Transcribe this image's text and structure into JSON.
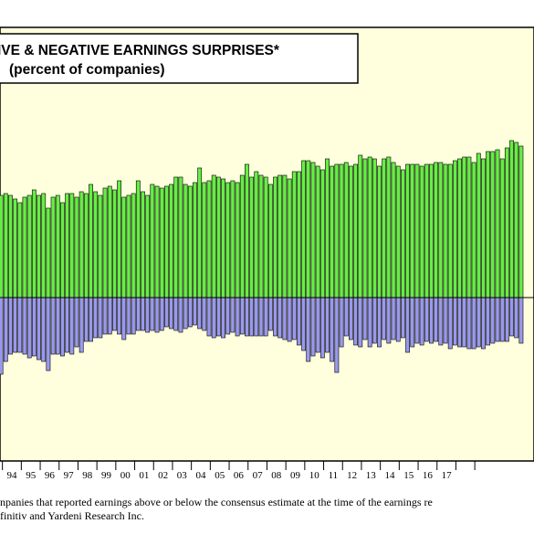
{
  "chart_data": {
    "type": "bar",
    "title": "IVE & NEGATIVE EARNINGS SURPRISES*",
    "subtitle": "(percent of companies)",
    "x_tick_labels": [
      "94",
      "95",
      "96",
      "97",
      "98",
      "99",
      "00",
      "01",
      "02",
      "03",
      "04",
      "05",
      "06",
      "07",
      "08",
      "09",
      "10",
      "11",
      "12",
      "13",
      "14",
      "15",
      "16",
      "17"
    ],
    "ylim": [
      -40,
      100
    ],
    "series": [
      {
        "values": [
          56,
          57,
          56,
          54,
          52,
          55,
          56,
          59,
          56,
          57,
          49,
          55,
          56,
          52,
          57,
          57,
          55,
          58,
          57,
          62,
          58,
          56,
          60,
          61,
          59,
          64,
          55,
          56,
          57,
          64,
          58,
          56,
          62,
          61,
          60,
          61,
          62,
          66,
          66,
          62,
          61,
          63,
          71,
          63,
          64,
          67,
          66,
          65,
          63,
          64,
          63,
          67,
          73,
          66,
          69,
          67,
          66,
          62,
          66,
          67,
          67,
          65,
          69,
          69,
          75,
          75,
          74,
          72,
          70,
          76,
          72,
          73,
          73,
          74,
          72,
          73,
          78,
          76,
          77,
          76,
          72,
          76,
          77,
          74,
          72,
          70,
          73,
          73,
          73,
          72,
          73,
          73,
          74,
          74,
          73,
          73,
          75,
          76,
          77,
          77,
          74,
          79,
          76,
          80,
          80,
          81,
          76,
          82,
          86,
          85,
          83
        ]
      },
      {
        "values": [
          -42,
          -35,
          -31,
          -30,
          -30,
          -31,
          -33,
          -32,
          -34,
          -35,
          -40,
          -31,
          -31,
          -32,
          -30,
          -31,
          -27,
          -30,
          -24,
          -24,
          -22,
          -22,
          -20,
          -20,
          -18,
          -20,
          -23,
          -20,
          -20,
          -18,
          -18,
          -19,
          -18,
          -19,
          -18,
          -16,
          -17,
          -18,
          -19,
          -17,
          -16,
          -15,
          -17,
          -18,
          -21,
          -22,
          -21,
          -22,
          -20,
          -19,
          -21,
          -20,
          -21,
          -21,
          -21,
          -21,
          -21,
          -18,
          -21,
          -22,
          -23,
          -24,
          -23,
          -26,
          -29,
          -35,
          -32,
          -30,
          -33,
          -30,
          -35,
          -41,
          -27,
          -21,
          -23,
          -26,
          -27,
          -23,
          -27,
          -25,
          -27,
          -23,
          -25,
          -23,
          -24,
          -22,
          -30,
          -27,
          -25,
          -26,
          -24,
          -25,
          -24,
          -26,
          -25,
          -28,
          -26,
          -27,
          -27,
          -28,
          -28,
          -27,
          -28,
          -26,
          -25,
          -24,
          -24,
          -24,
          -21,
          -22,
          -25
        ]
      }
    ],
    "colors": {
      "positive": "#66ee44",
      "negative": "#9999ee"
    }
  },
  "footnote": {
    "line1": "npanies that reported earnings above or below the consensus estimate at the time of the earnings re",
    "line2": "finitiv and Yardeni Research Inc."
  }
}
